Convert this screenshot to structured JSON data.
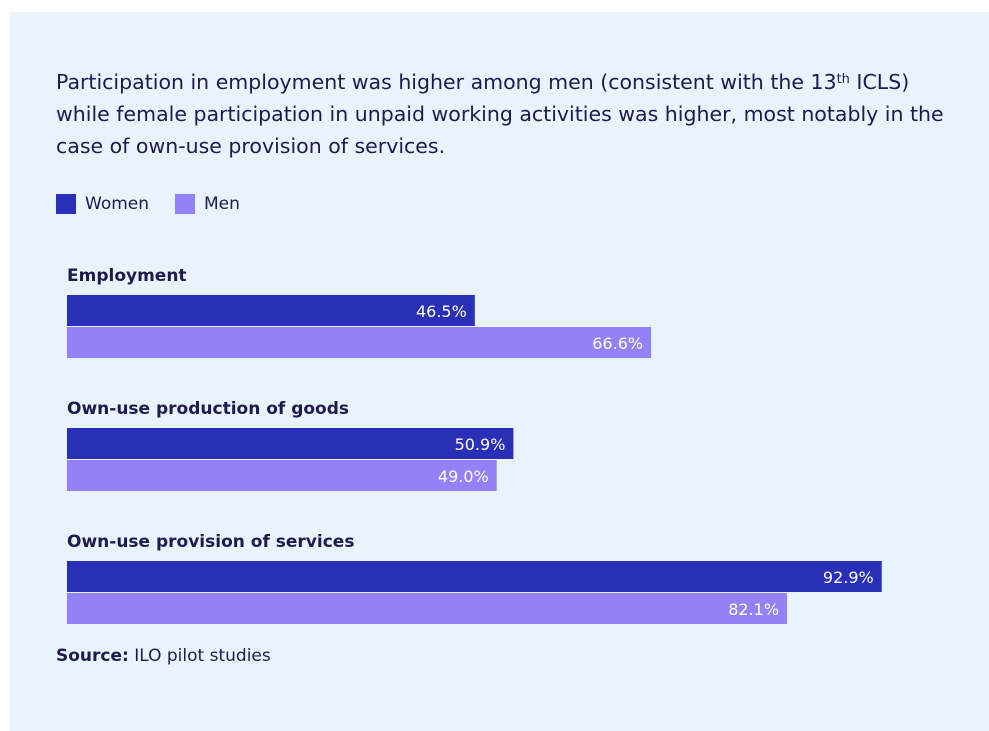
{
  "title": {
    "before": "Participation in employment was higher among men (consistent with the 13",
    "sup": "th",
    "after": " ICLS) while female participation in unpaid working activities was higher, most notably in the case of own-use provision of services."
  },
  "source": {
    "label": "Source:",
    "text": " ILO pilot studies"
  },
  "chart_data": {
    "type": "bar",
    "orientation": "horizontal",
    "categories": [
      "Employment",
      "Own-use production of goods",
      "Own-use provision of services"
    ],
    "series": [
      {
        "name": "Women",
        "values": [
          46.5,
          50.9,
          92.9
        ],
        "labels": [
          "46.5%",
          "50.9%",
          "92.9%"
        ],
        "color": "#2a2fb8"
      },
      {
        "name": "Men",
        "values": [
          66.6,
          49.0,
          82.1
        ],
        "labels": [
          "66.6%",
          "49.0%",
          "82.1%"
        ],
        "color": "#9581f7"
      }
    ],
    "xlim": [
      0,
      100
    ],
    "unit": "%",
    "legend_position": "top-left",
    "grid": false
  }
}
